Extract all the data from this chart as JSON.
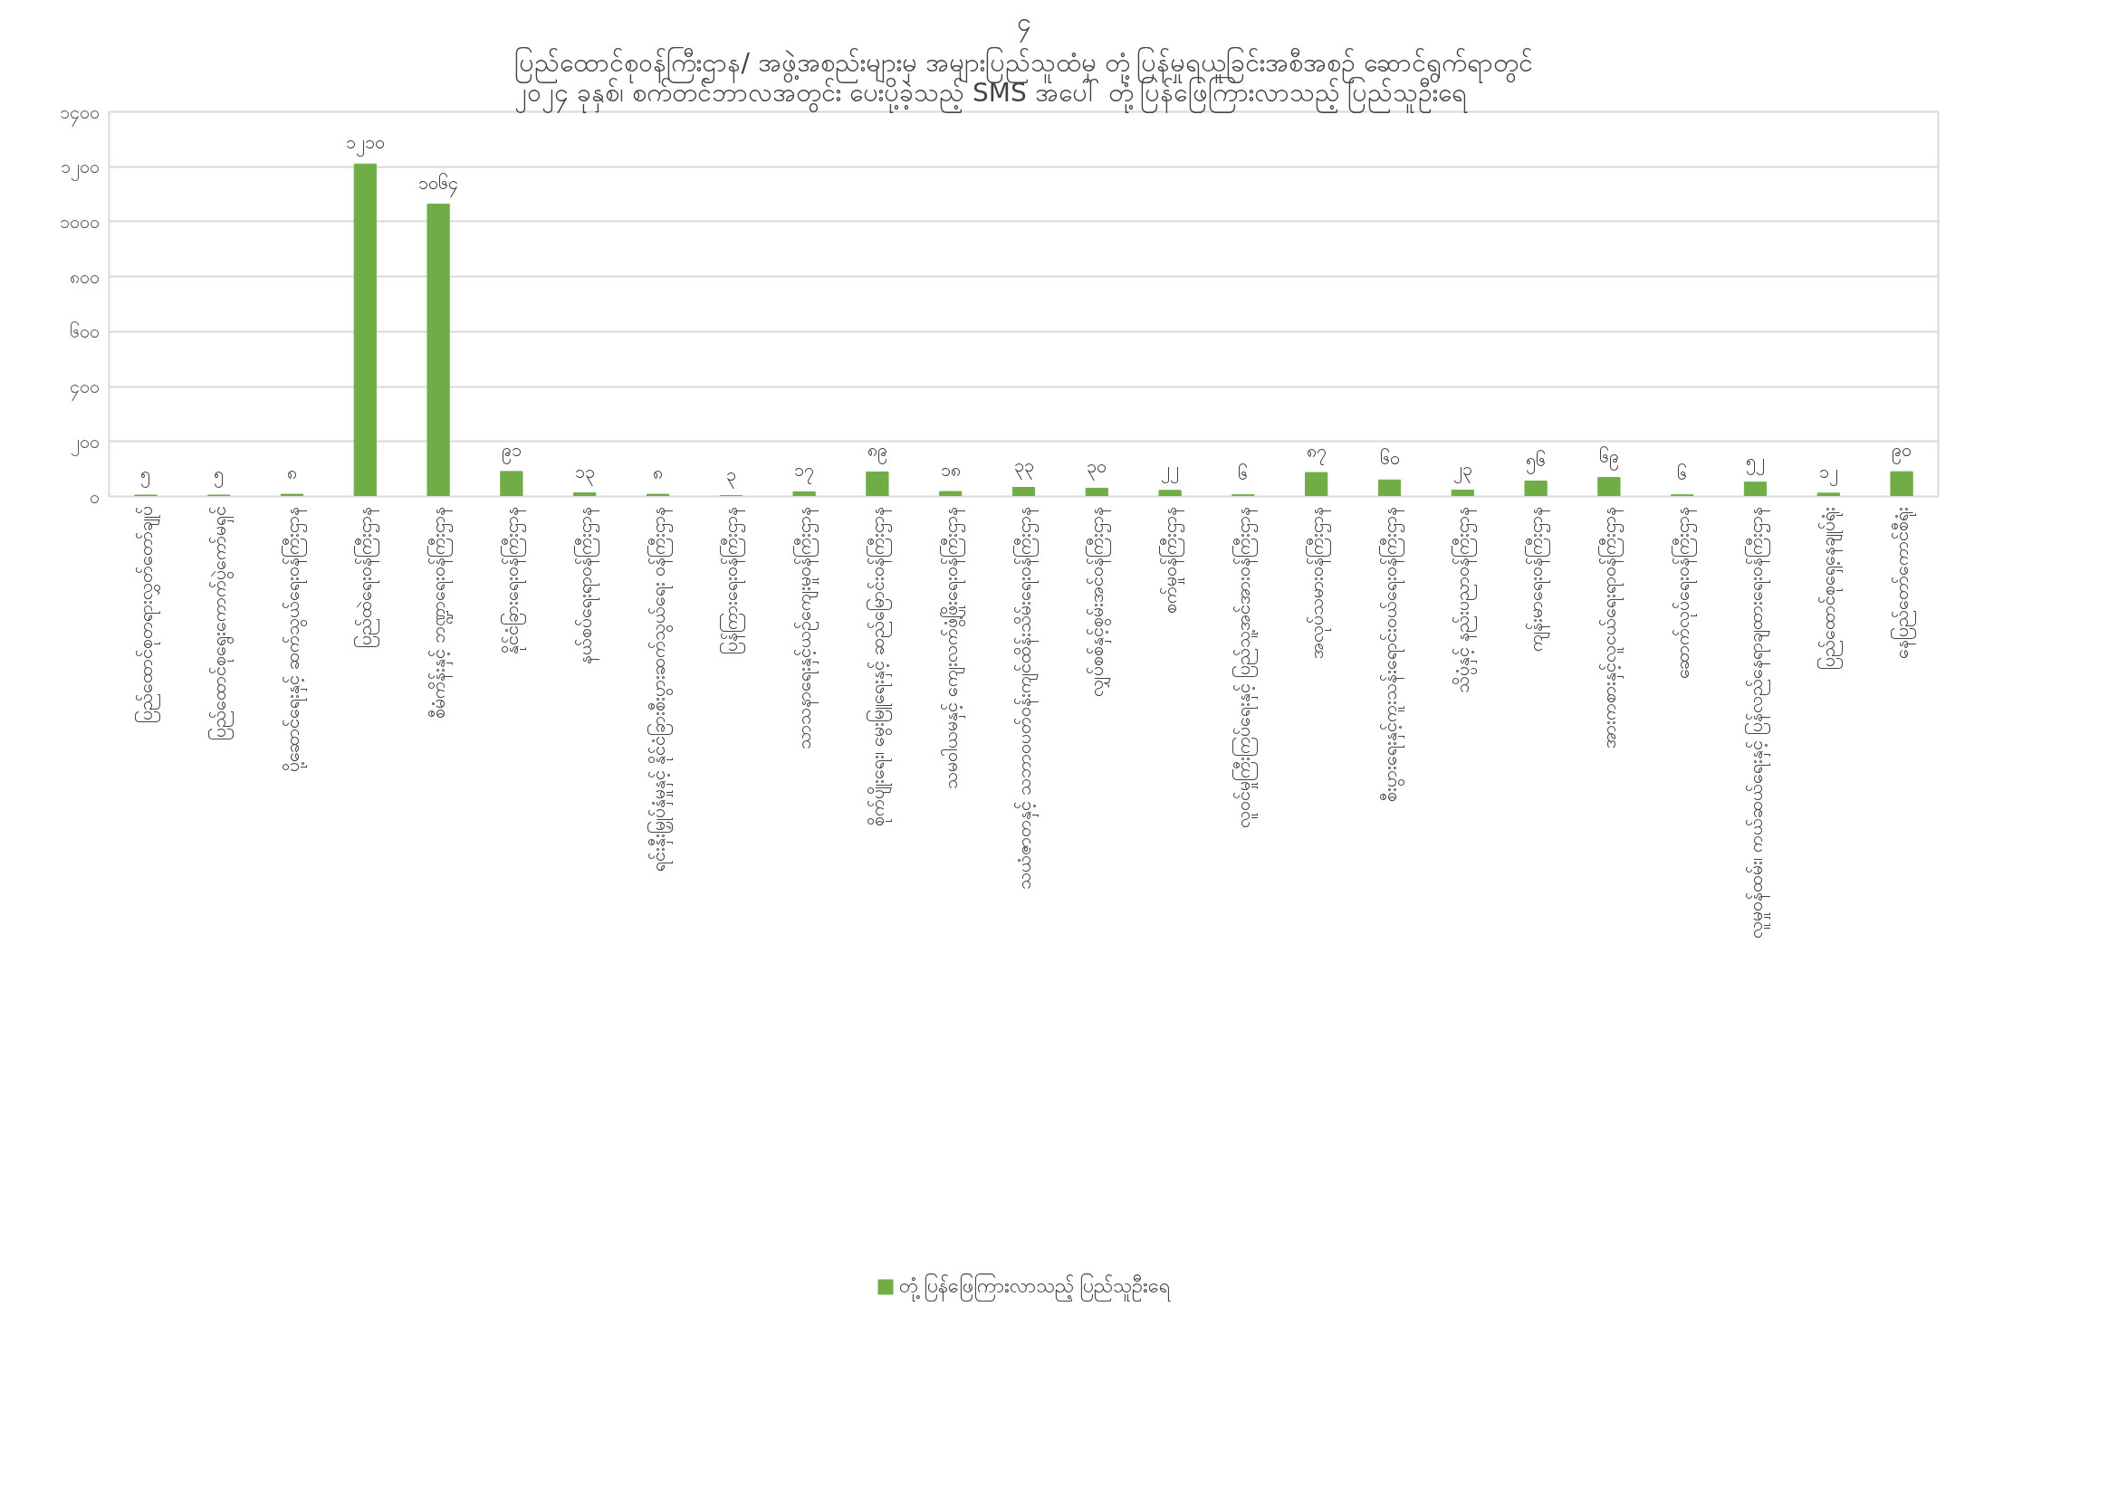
{
  "chart_data": {
    "type": "bar",
    "title": "ပြည်ထောင်စုဝန်ကြီးဌာန/ အဖွဲ့အစည်းများမှ အများပြည်သူထံမှ တုံ့ပြန်မှုရယူခြင်းအစီအစဉ် ဆောင်ရွက်ရာတွင်\n၂၀၂၄ ခုနှစ်၊ စက်တင်ဘာလအတွင်း ပေးပို့ခဲ့သည့် SMS အပေါ် တုံ့ပြန်ဖြေကြားလာသည့် ပြည်သူဦးရေ",
    "annotations": [
      "၄"
    ],
    "categories": [
      "ပြည်ထောင်စုတရားလွှတ်တော်ချုပ်",
      "ပြည်ထောင်စုရွေးကောက်ပွဲကော်မရှင်",
      "ပို့ဆောင်ရေးနှင့် ဆက်သွယ်ရေးဝန်ကြီးဌာန",
      "ပြည်ထဲရေးဝန်ကြီးဌာန",
      "စီမံကိန်းနှင့် ဘဏ္ဍာရေးဝန်ကြီးဌာန",
      "နိုင်ငံခြားရေးဝန်ကြီးဌာန",
      "နယ်စပ်ရေးရာဝန်ကြီးဌာန",
      "ရင်းနှီးမြှုပ်နှံမှုနှင့် နိုင်ငံခြားစီးပွားဆက်သွယ်ရေး ဝန်ကြီးဌာန",
      "ပြန်ကြားရေးဝန်ကြီးဌာန",
      "သာသနာရေးနှင့်ယဉ်ကျေးမှုဝန်ကြီးဌာန",
      "စိုက်ပျိုးရေး၊ မွေးမြူရေးနှင့် ဆည်မြောင်းဝန်ကြီးဌာန",
      "သမဝါယမနှင့် ကျေးလက်ဖွံ့ဖြိုးရေးဝန်ကြီးဌာန",
      "သယံဇာတနှင့် သဘာဝပတ်ဝန်းကျင်ထိန်းသိမ်းရေးဝန်ကြီးဌာန",
      "လျှပ်စစ်နှင့်စွမ်းအင်ဝန်ကြီးဌာန",
      "စက်မှုဝန်ကြီးဌာန",
      "လူဝင်မှုကြီးကြပ်ရေးနှင့် ပြည်သူ့အင်အားဝန်ကြီးဌာန",
      "အလုပ်သမားဝန်ကြီးဌာန",
      "စီးပွားရေးနှင့်ကူးသန်းရောင်းဝယ်ရေးဝန်ကြီးဌာန",
      "သိပ္ပံနှင့် နည်းပညာဝန်ကြီးဌာန",
      "ကျန်းမာရေးဝန်ကြီးဌာန",
      "အားကစားနှင့်လူငယ်ရေးရာဝန်ကြီးဌာန",
      "ဆောက်လုပ်ရေးဝန်ကြီးဌာန",
      "လူမှုဝန်ထမ်း၊ ကယ်ဆယ်ရေးနှင့် ပြန်လည်နေရာချထားရေးဝန်ကြီးဌာန",
      "ပြည်ထောင်စုရှေ့နေချုပ်ရုံး",
      "နေပြည်တော်ကောင်စီရုံး"
    ],
    "series": [
      {
        "name": "တုံ့ပြန်ဖြေကြားလာသည့် ပြည်သူဦးရေ",
        "color": "#70ad47",
        "values": [
          5,
          5,
          8,
          1210,
          1064,
          91,
          13,
          8,
          3,
          17,
          89,
          18,
          33,
          30,
          22,
          6,
          87,
          60,
          23,
          56,
          69,
          6,
          52,
          12,
          90
        ],
        "value_labels": [
          "၅",
          "၅",
          "၈",
          "၁၂၁၀",
          "၁၀၆၄",
          "၉၁",
          "၁၃",
          "၈",
          "၃",
          "၁၇",
          "၈၉",
          "၁၈",
          "၃၃",
          "၃၀",
          "၂၂",
          "၆",
          "၈၇",
          "၆၀",
          "၂၃",
          "၅၆",
          "၆၉",
          "၆",
          "၅၂",
          "၁၂",
          "၉၀"
        ]
      }
    ],
    "ylim": [
      0,
      1400
    ],
    "yticks": [
      {
        "value": 0,
        "label": "၀"
      },
      {
        "value": 200,
        "label": "၂၀၀"
      },
      {
        "value": 400,
        "label": "၄၀၀"
      },
      {
        "value": 600,
        "label": "၆၀၀"
      },
      {
        "value": 800,
        "label": "၈၀၀"
      },
      {
        "value": 1000,
        "label": "၁၀၀၀"
      },
      {
        "value": 1200,
        "label": "၁၂၀၀"
      },
      {
        "value": 1400,
        "label": "၁၄၀၀"
      }
    ],
    "grid": "y",
    "legend": "bottom"
  }
}
